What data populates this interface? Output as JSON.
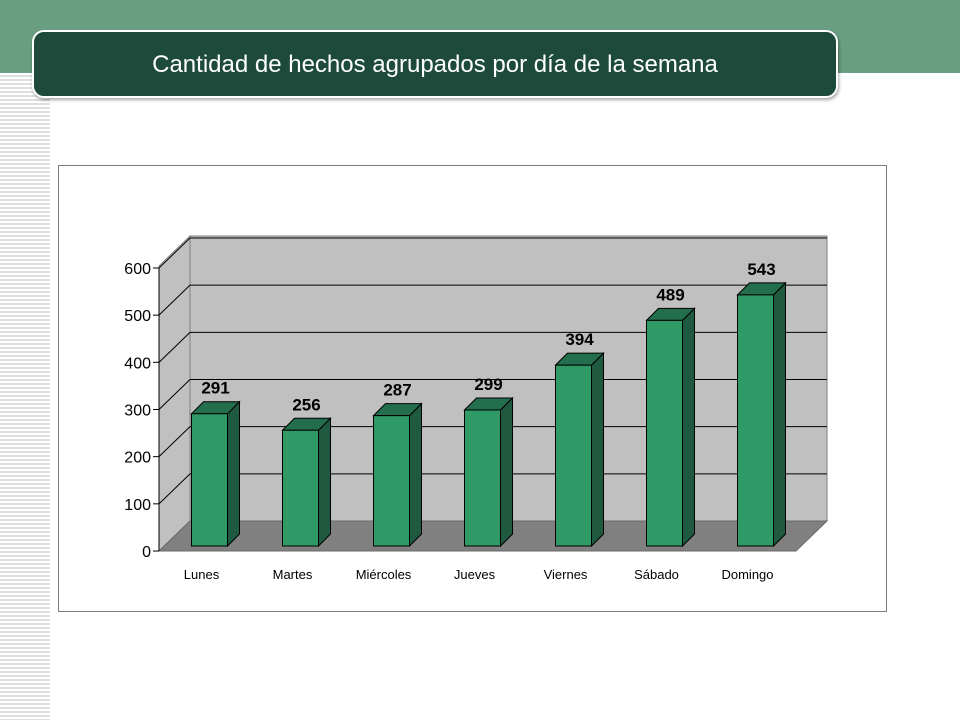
{
  "slide": {
    "title": "Cantidad de hechos agrupados por día de la semana"
  },
  "colors": {
    "band": "#6a9e82",
    "title_bg": "#1e4a3c",
    "bar_front": "#2f9a66",
    "bar_side": "#1f5a40",
    "bar_top": "#236e4c",
    "wall": "#c0c0c0",
    "floor": "#808080"
  },
  "chart_data": {
    "type": "bar",
    "style": "3d-column",
    "categories": [
      "Lunes",
      "Martes",
      "Miércoles",
      "Jueves",
      "Viernes",
      "Sábado",
      "Domingo"
    ],
    "values": [
      291,
      256,
      287,
      299,
      394,
      489,
      543
    ],
    "data_labels": [
      "291",
      "256",
      "287",
      "299",
      "394",
      "489",
      "543"
    ],
    "ylim": [
      0,
      600
    ],
    "yticks": [
      0,
      100,
      200,
      300,
      400,
      500,
      600
    ],
    "ytick_labels": [
      "0",
      "100",
      "200",
      "300",
      "400",
      "500",
      "600"
    ],
    "grid": true,
    "legend": "none"
  }
}
